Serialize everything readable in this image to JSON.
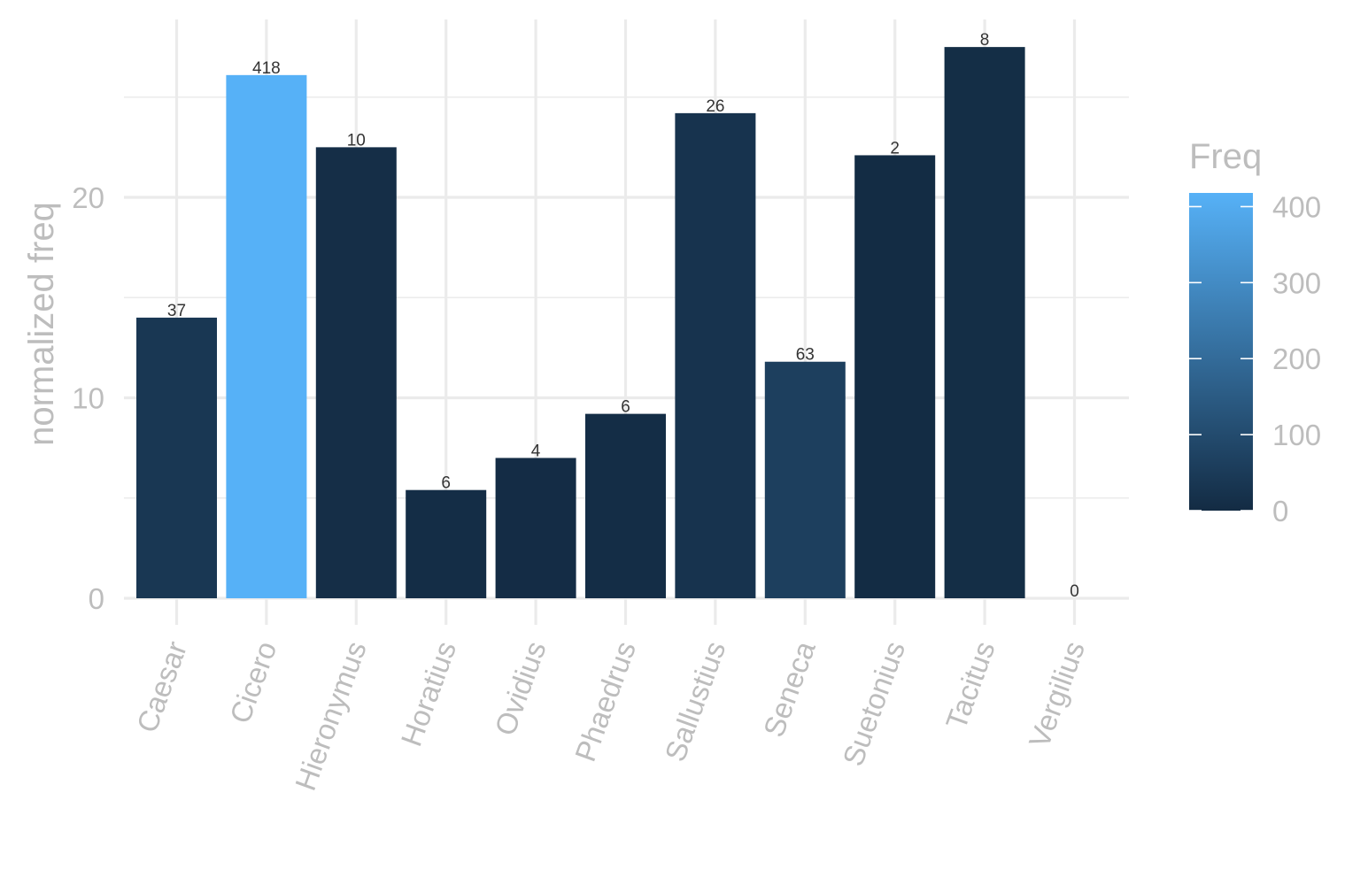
{
  "chart_data": {
    "type": "bar",
    "title": "",
    "xlabel": "",
    "ylabel": "normalized freq",
    "ylim": [
      0,
      28.6
    ],
    "y_ticks": [
      0,
      10,
      20
    ],
    "grid": true,
    "legend_placement": "right",
    "categories": [
      "Caesar",
      "Cicero",
      "Hieronymus",
      "Horatius",
      "Ovidius",
      "Phaedrus",
      "Sallustius",
      "Seneca",
      "Suetonius",
      "Tacitus",
      "Vergilius"
    ],
    "values": [
      14.0,
      26.1,
      22.5,
      5.4,
      7.0,
      9.2,
      24.2,
      11.8,
      22.1,
      27.5,
      0
    ],
    "freq": [
      37,
      418,
      10,
      6,
      4,
      6,
      26,
      63,
      2,
      8,
      0
    ],
    "bar_labels": [
      "37",
      "418",
      "10",
      "6",
      "4",
      "6",
      "26",
      "63",
      "2",
      "8",
      "0"
    ],
    "fill_legend": {
      "title": "Freq",
      "min": 0,
      "max": 418,
      "ticks": [
        0,
        100,
        200,
        300,
        400
      ],
      "tick_labels": [
        "0",
        "100",
        "200",
        "300",
        "400"
      ],
      "low_color": "#132b43",
      "high_color": "#56b1f7"
    }
  }
}
